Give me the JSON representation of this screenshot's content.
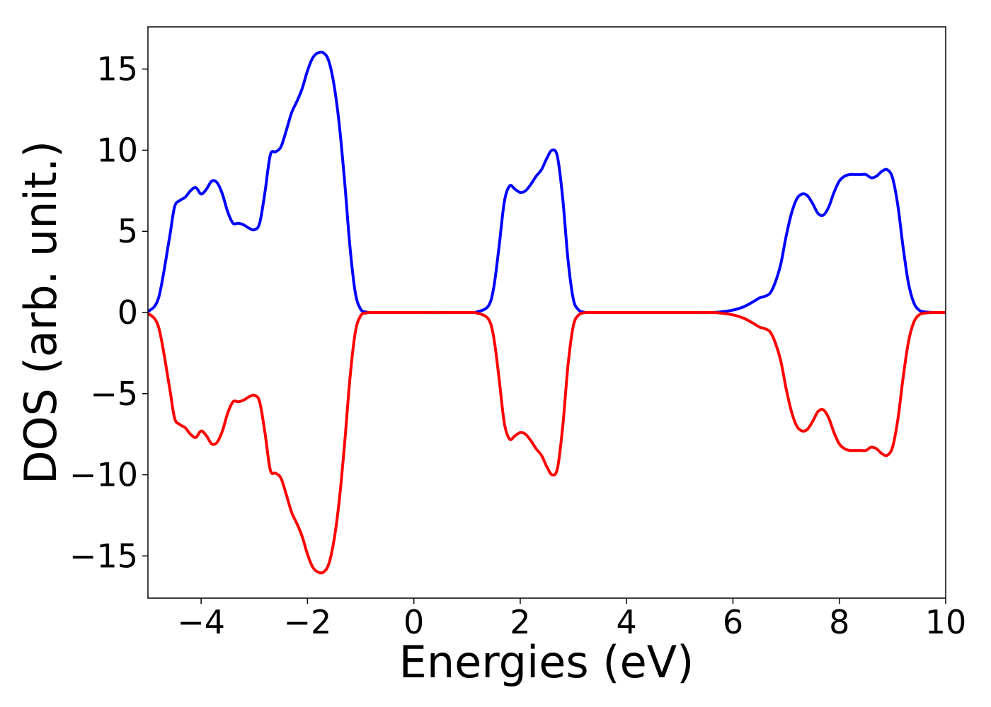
{
  "chart_data": {
    "type": "line",
    "title": "",
    "xlabel": "Energies (eV)",
    "ylabel": "DOS (arb. unit.)",
    "xlim": [
      -5,
      10
    ],
    "ylim": [
      -17.6,
      17.6
    ],
    "xticks": [
      -4,
      -2,
      0,
      2,
      4,
      6,
      8,
      10
    ],
    "xtick_labels": [
      "−4",
      "−2",
      "0",
      "2",
      "4",
      "6",
      "8",
      "10"
    ],
    "yticks": [
      -15,
      -10,
      -5,
      0,
      5,
      10,
      15
    ],
    "ytick_labels": [
      "−15",
      "−10",
      "−5",
      "0",
      "5",
      "10",
      "15"
    ],
    "grid": false,
    "legend": "none",
    "series": [
      {
        "color": "#0000ff",
        "x": [
          -5.0,
          -4.8,
          -4.6,
          -4.5,
          -4.4,
          -4.3,
          -4.2,
          -4.1,
          -4.0,
          -3.9,
          -3.8,
          -3.7,
          -3.6,
          -3.5,
          -3.4,
          -3.3,
          -3.2,
          -3.1,
          -3.0,
          -2.9,
          -2.8,
          -2.7,
          -2.6,
          -2.5,
          -2.4,
          -2.3,
          -2.2,
          -2.1,
          -2.0,
          -1.9,
          -1.8,
          -1.7,
          -1.6,
          -1.5,
          -1.4,
          -1.3,
          -1.2,
          -1.1,
          -1.0,
          -0.9,
          -0.8,
          -0.7,
          -0.6,
          -0.5,
          0.0,
          1.0,
          1.2,
          1.4,
          1.5,
          1.6,
          1.7,
          1.8,
          1.9,
          2.0,
          2.1,
          2.2,
          2.3,
          2.4,
          2.5,
          2.6,
          2.7,
          2.8,
          2.9,
          3.0,
          3.1,
          3.2,
          3.3,
          3.4,
          3.5,
          3.6,
          4.0,
          5.0,
          5.6,
          5.8,
          6.0,
          6.2,
          6.4,
          6.5,
          6.6,
          6.7,
          6.8,
          6.9,
          7.0,
          7.1,
          7.2,
          7.3,
          7.4,
          7.5,
          7.6,
          7.7,
          7.8,
          7.9,
          8.0,
          8.1,
          8.2,
          8.3,
          8.4,
          8.5,
          8.6,
          8.7,
          8.8,
          8.9,
          9.0,
          9.1,
          9.2,
          9.3,
          9.4,
          9.5,
          9.6,
          9.8,
          10.0
        ],
        "y": [
          0.05,
          0.9,
          4.5,
          6.5,
          6.9,
          7.1,
          7.5,
          7.7,
          7.3,
          7.6,
          8.1,
          8.0,
          7.3,
          6.2,
          5.5,
          5.5,
          5.4,
          5.2,
          5.1,
          5.5,
          7.4,
          9.7,
          9.9,
          10.2,
          11.2,
          12.3,
          13.0,
          13.8,
          14.9,
          15.7,
          16.0,
          16.0,
          15.5,
          14.0,
          11.5,
          8.0,
          4.0,
          1.2,
          0.2,
          0.03,
          0.0,
          0.0,
          0.0,
          0.0,
          0.0,
          0.0,
          0.05,
          0.4,
          1.5,
          4.0,
          6.8,
          7.8,
          7.6,
          7.4,
          7.5,
          7.9,
          8.4,
          8.8,
          9.5,
          10.0,
          9.6,
          7.0,
          3.2,
          0.8,
          0.15,
          0.02,
          0.0,
          0.0,
          0.0,
          0.0,
          0.0,
          0.0,
          0.0,
          0.05,
          0.15,
          0.35,
          0.7,
          0.9,
          1.0,
          1.2,
          1.9,
          3.0,
          4.7,
          6.1,
          7.0,
          7.3,
          7.2,
          6.7,
          6.1,
          6.0,
          6.5,
          7.4,
          8.1,
          8.4,
          8.5,
          8.5,
          8.5,
          8.5,
          8.3,
          8.4,
          8.7,
          8.8,
          8.3,
          6.6,
          4.0,
          1.8,
          0.6,
          0.15,
          0.04,
          0.0,
          0.0
        ]
      },
      {
        "color": "#ff0000",
        "x": [
          -5.0,
          -4.8,
          -4.6,
          -4.5,
          -4.4,
          -4.3,
          -4.2,
          -4.1,
          -4.0,
          -3.9,
          -3.8,
          -3.7,
          -3.6,
          -3.5,
          -3.4,
          -3.3,
          -3.2,
          -3.1,
          -3.0,
          -2.9,
          -2.8,
          -2.7,
          -2.6,
          -2.5,
          -2.4,
          -2.3,
          -2.2,
          -2.1,
          -2.0,
          -1.9,
          -1.8,
          -1.7,
          -1.6,
          -1.5,
          -1.4,
          -1.3,
          -1.2,
          -1.1,
          -1.0,
          -0.9,
          -0.8,
          -0.7,
          -0.6,
          -0.5,
          0.0,
          1.0,
          1.2,
          1.4,
          1.5,
          1.6,
          1.7,
          1.8,
          1.9,
          2.0,
          2.1,
          2.2,
          2.3,
          2.4,
          2.5,
          2.6,
          2.7,
          2.8,
          2.9,
          3.0,
          3.1,
          3.2,
          3.3,
          3.4,
          3.5,
          3.6,
          4.0,
          5.0,
          5.6,
          5.8,
          6.0,
          6.2,
          6.4,
          6.5,
          6.6,
          6.7,
          6.8,
          6.9,
          7.0,
          7.1,
          7.2,
          7.3,
          7.4,
          7.5,
          7.6,
          7.7,
          7.8,
          7.9,
          8.0,
          8.1,
          8.2,
          8.3,
          8.4,
          8.5,
          8.6,
          8.7,
          8.8,
          8.9,
          9.0,
          9.1,
          9.2,
          9.3,
          9.4,
          9.5,
          9.6,
          9.8,
          10.0
        ],
        "y": [
          -0.05,
          -0.9,
          -4.5,
          -6.5,
          -6.9,
          -7.1,
          -7.5,
          -7.7,
          -7.3,
          -7.6,
          -8.1,
          -8.0,
          -7.3,
          -6.2,
          -5.5,
          -5.5,
          -5.4,
          -5.2,
          -5.1,
          -5.5,
          -7.4,
          -9.7,
          -9.9,
          -10.2,
          -11.2,
          -12.3,
          -13.0,
          -13.8,
          -14.9,
          -15.7,
          -16.0,
          -16.0,
          -15.5,
          -14.0,
          -11.5,
          -8.0,
          -4.0,
          -1.2,
          -0.2,
          -0.03,
          0.0,
          0.0,
          0.0,
          0.0,
          0.0,
          0.0,
          -0.05,
          -0.4,
          -1.5,
          -4.0,
          -6.8,
          -7.8,
          -7.6,
          -7.4,
          -7.5,
          -7.9,
          -8.4,
          -8.8,
          -9.5,
          -10.0,
          -9.6,
          -7.0,
          -3.2,
          -0.8,
          -0.15,
          -0.02,
          0.0,
          0.0,
          0.0,
          0.0,
          0.0,
          0.0,
          0.0,
          -0.05,
          -0.15,
          -0.35,
          -0.7,
          -0.9,
          -1.0,
          -1.2,
          -1.9,
          -3.0,
          -4.7,
          -6.1,
          -7.0,
          -7.3,
          -7.2,
          -6.7,
          -6.1,
          -6.0,
          -6.5,
          -7.4,
          -8.1,
          -8.4,
          -8.5,
          -8.5,
          -8.5,
          -8.5,
          -8.3,
          -8.4,
          -8.7,
          -8.8,
          -8.3,
          -6.6,
          -4.0,
          -1.8,
          -0.6,
          -0.15,
          -0.04,
          0.0,
          0.0
        ]
      }
    ]
  }
}
